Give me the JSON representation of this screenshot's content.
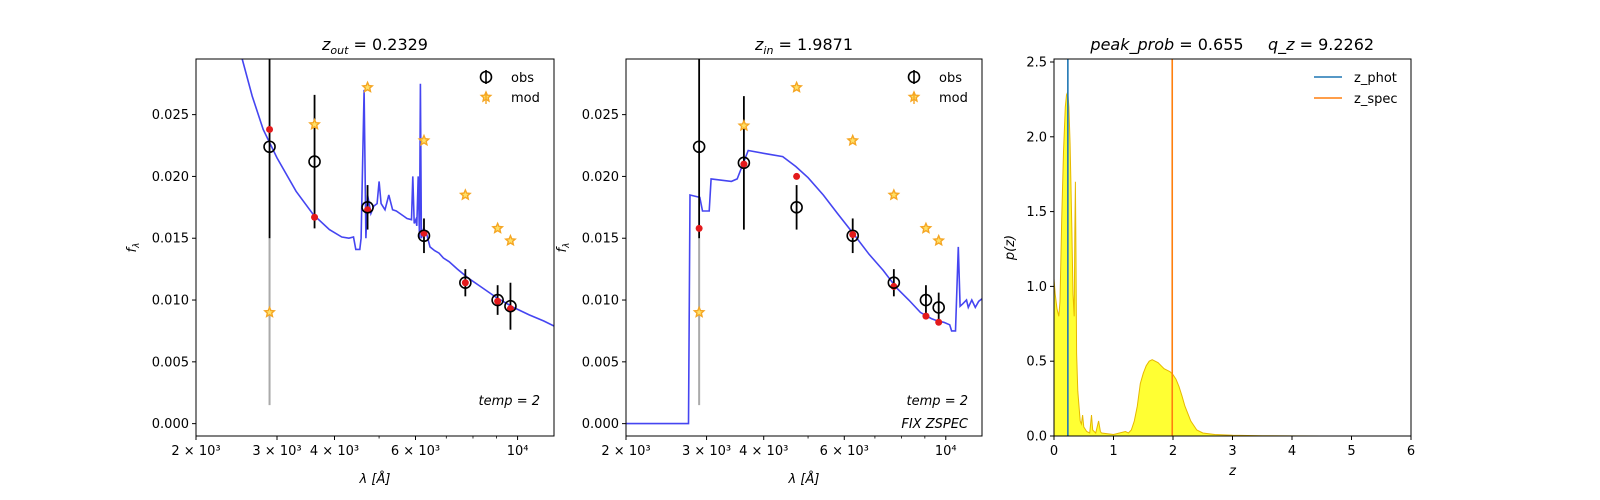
{
  "chart_data": [
    {
      "type": "scatter",
      "title_var": "z",
      "title_sub": "out",
      "title_val": "0.2329",
      "xlabel_prefix": "λ [",
      "xlabel_unit": "Å",
      "xlabel_suffix": "]",
      "ylabel": "f",
      "ylabel_sub": "λ",
      "xscale": "log",
      "xlim": [
        2000,
        12000
      ],
      "ylim": [
        -0.001,
        0.0295
      ],
      "xticks": [
        {
          "v": 2000,
          "label": "2 × 10³"
        },
        {
          "v": 3000,
          "label": "3 × 10³"
        },
        {
          "v": 4000,
          "label": "4 × 10³"
        },
        {
          "v": 6000,
          "label": "6 × 10³"
        },
        {
          "v": 10000,
          "label": "10⁴"
        }
      ],
      "yticks": [
        "0.000",
        "0.005",
        "0.010",
        "0.015",
        "0.020",
        "0.025"
      ],
      "legend": [
        "obs",
        "mod"
      ],
      "annotations": [
        "temp = 2"
      ],
      "template": [
        [
          2520,
          0.0295
        ],
        [
          2650,
          0.0265
        ],
        [
          2800,
          0.0238
        ],
        [
          3000,
          0.0215
        ],
        [
          3300,
          0.0188
        ],
        [
          3600,
          0.0169
        ],
        [
          3900,
          0.0157
        ],
        [
          4150,
          0.0151
        ],
        [
          4300,
          0.015
        ],
        [
          4400,
          0.0151
        ],
        [
          4450,
          0.0141
        ],
        [
          4540,
          0.0141
        ],
        [
          4570,
          0.015
        ],
        [
          4640,
          0.027
        ],
        [
          4680,
          0.015
        ],
        [
          4720,
          0.0185
        ],
        [
          4800,
          0.017
        ],
        [
          4870,
          0.0176
        ],
        [
          4950,
          0.0178
        ],
        [
          5000,
          0.0196
        ],
        [
          5050,
          0.0178
        ],
        [
          5150,
          0.0173
        ],
        [
          5250,
          0.0185
        ],
        [
          5350,
          0.0173
        ],
        [
          5450,
          0.0172
        ],
        [
          5550,
          0.017
        ],
        [
          5650,
          0.0168
        ],
        [
          5750,
          0.0166
        ],
        [
          5880,
          0.0165
        ],
        [
          5920,
          0.02
        ],
        [
          5960,
          0.0162
        ],
        [
          6010,
          0.0165
        ],
        [
          6040,
          0.016
        ],
        [
          6080,
          0.02
        ],
        [
          6120,
          0.015
        ],
        [
          6150,
          0.0275
        ],
        [
          6180,
          0.015
        ],
        [
          6250,
          0.0158
        ],
        [
          6350,
          0.0153
        ],
        [
          6450,
          0.0143
        ],
        [
          6600,
          0.014
        ],
        [
          6750,
          0.0138
        ],
        [
          6900,
          0.0134
        ],
        [
          7100,
          0.0131
        ],
        [
          7400,
          0.0125
        ],
        [
          7800,
          0.0118
        ],
        [
          8300,
          0.0111
        ],
        [
          9000,
          0.0102
        ],
        [
          9800,
          0.0094
        ],
        [
          10600,
          0.0088
        ],
        [
          11400,
          0.0083
        ],
        [
          12000,
          0.0079
        ]
      ],
      "obs": [
        {
          "x": 2890,
          "y": 0.0224,
          "yerr": 0.0074,
          "grey": true
        },
        {
          "x": 3620,
          "y": 0.0212,
          "yerr": 0.0054
        },
        {
          "x": 4720,
          "y": 0.0175,
          "yerr": 0.0018
        },
        {
          "x": 6260,
          "y": 0.0152,
          "yerr": 0.0014
        },
        {
          "x": 7700,
          "y": 0.0114,
          "yerr": 0.0011
        },
        {
          "x": 9050,
          "y": 0.01,
          "yerr": 0.0012
        },
        {
          "x": 9650,
          "y": 0.0095,
          "yerr": 0.0019
        }
      ],
      "model_points": [
        {
          "x": 2890,
          "y": 0.0238
        },
        {
          "x": 3620,
          "y": 0.0167
        },
        {
          "x": 4720,
          "y": 0.0173
        },
        {
          "x": 6260,
          "y": 0.0154
        },
        {
          "x": 7700,
          "y": 0.0114
        },
        {
          "x": 9050,
          "y": 0.0099
        },
        {
          "x": 9650,
          "y": 0.0093
        }
      ],
      "mod": [
        {
          "x": 2890,
          "y": 0.009
        },
        {
          "x": 3620,
          "y": 0.0242
        },
        {
          "x": 4720,
          "y": 0.0272
        },
        {
          "x": 6260,
          "y": 0.0229
        },
        {
          "x": 7700,
          "y": 0.0185
        },
        {
          "x": 9050,
          "y": 0.0158
        },
        {
          "x": 9650,
          "y": 0.0148
        }
      ],
      "grey_bar": {
        "x": 2890,
        "y0": 0.0015,
        "y1": 0.015
      },
      "colors": {
        "template": "#3b3bf0",
        "obs": "#000000",
        "model_point": "#e31a1c",
        "mod": "#f5a623",
        "grey": "#aaaaaa"
      }
    },
    {
      "type": "scatter",
      "title_var": "z",
      "title_sub": "in",
      "title_val": "1.9871",
      "xlabel_prefix": "λ [",
      "xlabel_unit": "Å",
      "xlabel_suffix": "]",
      "ylabel": "f",
      "ylabel_sub": "λ",
      "xscale": "log",
      "xlim": [
        2000,
        12000
      ],
      "ylim": [
        -0.001,
        0.0295
      ],
      "xticks": [
        {
          "v": 2000,
          "label": "2 × 10³"
        },
        {
          "v": 3000,
          "label": "3 × 10³"
        },
        {
          "v": 4000,
          "label": "4 × 10³"
        },
        {
          "v": 6000,
          "label": "6 × 10³"
        },
        {
          "v": 10000,
          "label": "10⁴"
        }
      ],
      "yticks": [
        "0.000",
        "0.005",
        "0.010",
        "0.015",
        "0.020",
        "0.025"
      ],
      "legend": [
        "obs",
        "mod"
      ],
      "annotations": [
        "temp = 2",
        "FIX ZSPEC"
      ],
      "template": [
        [
          2000,
          0.0
        ],
        [
          2740,
          0.0
        ],
        [
          2760,
          0.0185
        ],
        [
          2900,
          0.0183
        ],
        [
          2940,
          0.0172
        ],
        [
          3040,
          0.0172
        ],
        [
          3070,
          0.0198
        ],
        [
          3400,
          0.0196
        ],
        [
          3500,
          0.0198
        ],
        [
          3700,
          0.0221
        ],
        [
          4100,
          0.0218
        ],
        [
          4400,
          0.0216
        ],
        [
          4700,
          0.0208
        ],
        [
          5000,
          0.0199
        ],
        [
          5400,
          0.0185
        ],
        [
          5800,
          0.017
        ],
        [
          6300,
          0.0153
        ],
        [
          6800,
          0.0137
        ],
        [
          7300,
          0.0124
        ],
        [
          7800,
          0.011
        ],
        [
          8300,
          0.01
        ],
        [
          8800,
          0.009
        ],
        [
          9300,
          0.0085
        ],
        [
          9600,
          0.0083
        ],
        [
          9900,
          0.0082
        ],
        [
          10200,
          0.008
        ],
        [
          10300,
          0.0075
        ],
        [
          10500,
          0.0075
        ],
        [
          10650,
          0.0143
        ],
        [
          10750,
          0.0095
        ],
        [
          10900,
          0.0097
        ],
        [
          11100,
          0.01
        ],
        [
          11200,
          0.0094
        ],
        [
          11400,
          0.01
        ],
        [
          11600,
          0.0094
        ],
        [
          11800,
          0.0099
        ],
        [
          12000,
          0.0101
        ]
      ],
      "obs": [
        {
          "x": 2890,
          "y": 0.0224,
          "yerr": 0.0074,
          "grey": true
        },
        {
          "x": 3620,
          "y": 0.0211,
          "yerr": 0.0054
        },
        {
          "x": 4720,
          "y": 0.0175,
          "yerr": 0.0018
        },
        {
          "x": 6260,
          "y": 0.0152,
          "yerr": 0.0014
        },
        {
          "x": 7700,
          "y": 0.0114,
          "yerr": 0.0011
        },
        {
          "x": 9050,
          "y": 0.01,
          "yerr": 0.0012
        },
        {
          "x": 9650,
          "y": 0.0094,
          "yerr": 0.0012
        }
      ],
      "model_points": [
        {
          "x": 2890,
          "y": 0.0158
        },
        {
          "x": 3620,
          "y": 0.021
        },
        {
          "x": 4720,
          "y": 0.02
        },
        {
          "x": 6260,
          "y": 0.0153
        },
        {
          "x": 7700,
          "y": 0.0111
        },
        {
          "x": 9050,
          "y": 0.0087
        },
        {
          "x": 9650,
          "y": 0.0082
        }
      ],
      "mod": [
        {
          "x": 2890,
          "y": 0.009
        },
        {
          "x": 3620,
          "y": 0.0241
        },
        {
          "x": 4720,
          "y": 0.0272
        },
        {
          "x": 6260,
          "y": 0.0229
        },
        {
          "x": 7700,
          "y": 0.0185
        },
        {
          "x": 9050,
          "y": 0.0158
        },
        {
          "x": 9650,
          "y": 0.0148
        }
      ],
      "grey_bar": {
        "x": 2890,
        "y0": 0.0015,
        "y1": 0.015
      },
      "colors": {
        "template": "#3b3bf0",
        "obs": "#000000",
        "model_point": "#e31a1c",
        "mod": "#f5a623",
        "grey": "#aaaaaa"
      }
    },
    {
      "type": "area",
      "title_left_var": "peak_prob",
      "title_left_val": "0.655",
      "title_right_var": "q_z",
      "title_right_val": "9.2262",
      "xlabel": "z",
      "ylabel": "p(z)",
      "xlim": [
        0,
        6
      ],
      "ylim": [
        0,
        2.52
      ],
      "xticks": [
        "0",
        "1",
        "2",
        "3",
        "4",
        "5",
        "6"
      ],
      "yticks": [
        "0.0",
        "0.5",
        "1.0",
        "1.5",
        "2.0",
        "2.5"
      ],
      "legend": [
        "z_phot",
        "z_spec"
      ],
      "z_phot": 0.2329,
      "z_spec": 1.9871,
      "pz": [
        [
          0,
          1.05
        ],
        [
          0.02,
          0.95
        ],
        [
          0.05,
          0.85
        ],
        [
          0.08,
          0.8
        ],
        [
          0.1,
          0.9
        ],
        [
          0.13,
          1.45
        ],
        [
          0.16,
          1.9
        ],
        [
          0.19,
          2.2
        ],
        [
          0.21,
          2.28
        ],
        [
          0.23,
          2.3
        ],
        [
          0.25,
          2.2
        ],
        [
          0.27,
          1.95
        ],
        [
          0.3,
          1.4
        ],
        [
          0.32,
          0.95
        ],
        [
          0.34,
          0.8
        ],
        [
          0.35,
          1.35
        ],
        [
          0.36,
          1.7
        ],
        [
          0.37,
          1.2
        ],
        [
          0.38,
          0.55
        ],
        [
          0.4,
          0.3
        ],
        [
          0.42,
          0.2
        ],
        [
          0.44,
          0.1
        ],
        [
          0.46,
          0.08
        ],
        [
          0.48,
          0.14
        ],
        [
          0.5,
          0.06
        ],
        [
          0.55,
          0.03
        ],
        [
          0.6,
          0.02
        ],
        [
          0.63,
          0.14
        ],
        [
          0.65,
          0.04
        ],
        [
          0.7,
          0.02
        ],
        [
          0.75,
          0.1
        ],
        [
          0.78,
          0.03
        ],
        [
          0.8,
          0.02
        ],
        [
          1.0,
          0.01
        ],
        [
          1.1,
          0.02
        ],
        [
          1.2,
          0.03
        ],
        [
          1.25,
          0.02
        ],
        [
          1.3,
          0.04
        ],
        [
          1.35,
          0.1
        ],
        [
          1.4,
          0.2
        ],
        [
          1.45,
          0.35
        ],
        [
          1.5,
          0.42
        ],
        [
          1.55,
          0.47
        ],
        [
          1.6,
          0.5
        ],
        [
          1.65,
          0.51
        ],
        [
          1.7,
          0.5
        ],
        [
          1.75,
          0.49
        ],
        [
          1.8,
          0.47
        ],
        [
          1.85,
          0.45
        ],
        [
          1.9,
          0.44
        ],
        [
          1.95,
          0.43
        ],
        [
          2.0,
          0.41
        ],
        [
          2.05,
          0.38
        ],
        [
          2.1,
          0.33
        ],
        [
          2.15,
          0.27
        ],
        [
          2.2,
          0.2
        ],
        [
          2.3,
          0.1
        ],
        [
          2.4,
          0.04
        ],
        [
          2.5,
          0.02
        ],
        [
          2.7,
          0.01
        ],
        [
          3.0,
          0.005
        ],
        [
          3.5,
          0.002
        ],
        [
          4.0,
          0.001
        ],
        [
          4.5,
          0.0
        ],
        [
          5.0,
          0.0
        ]
      ],
      "colors": {
        "fill": "#ffff33",
        "edge": "#e6b800",
        "z_phot": "#1f77b4",
        "z_spec": "#ff7f0e"
      }
    }
  ]
}
